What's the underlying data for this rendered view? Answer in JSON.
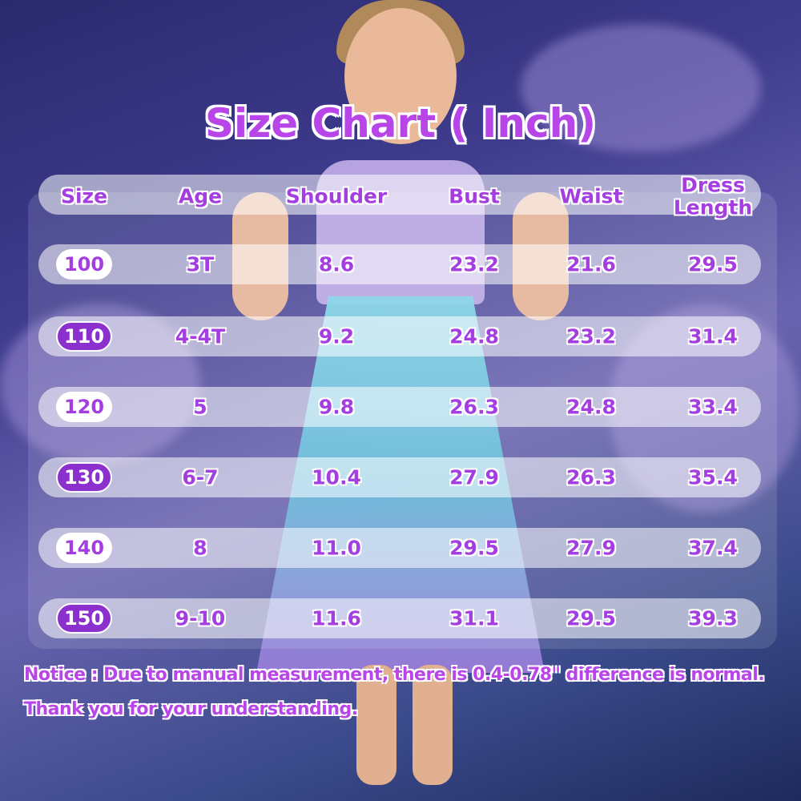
{
  "title": "Size Chart ( Inch)",
  "colors": {
    "text": "#a43ee0",
    "pill_dark": "#8c2fcf",
    "background": "#3f3c8e"
  },
  "headers": [
    "Size",
    "Age",
    "Shoulder",
    "Bust",
    "Waist",
    "Dress Length"
  ],
  "rows": [
    [
      "100",
      "3T",
      "8.6",
      "23.2",
      "21.6",
      "29.5"
    ],
    [
      "110",
      "4-4T",
      "9.2",
      "24.8",
      "23.2",
      "31.4"
    ],
    [
      "120",
      "5",
      "9.8",
      "26.3",
      "24.8",
      "33.4"
    ],
    [
      "130",
      "6-7",
      "10.4",
      "27.9",
      "26.3",
      "35.4"
    ],
    [
      "140",
      "8",
      "11.0",
      "29.5",
      "27.9",
      "37.4"
    ],
    [
      "150",
      "9-10",
      "11.6",
      "31.1",
      "29.5",
      "39.3"
    ]
  ],
  "notice": [
    "Notice : Due to manual measurement, there is 0.4-0.78\" difference is normal.",
    "Thank you for your understanding."
  ]
}
